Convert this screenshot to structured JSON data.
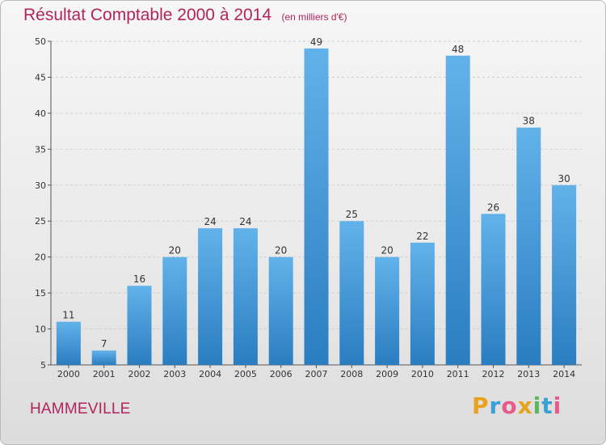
{
  "header": {
    "title": "Résultat Comptable 2000 à 2014",
    "unit": "(en milliers d'€)"
  },
  "footer": {
    "place": "HAMMEVILLE",
    "logo_text": "Proxiti",
    "logo_letters": [
      {
        "ch": "P",
        "color": "#e8a21d"
      },
      {
        "ch": "r",
        "color": "#3aa0d8"
      },
      {
        "ch": "o",
        "color": "#e85a8a"
      },
      {
        "ch": "x",
        "color": "#e8a21d"
      },
      {
        "ch": "i",
        "color": "#5cb85c"
      },
      {
        "ch": "t",
        "color": "#3aa0d8"
      },
      {
        "ch": "i",
        "color": "#e85a8a"
      }
    ]
  },
  "colors": {
    "title": "#b3245a",
    "bar_top": "#62b2ea",
    "bar_bottom": "#2a7dc0"
  },
  "chart_data": {
    "type": "bar",
    "title": "Résultat Comptable 2000 à 2014",
    "subtitle": "(en milliers d'€)",
    "xlabel": "",
    "ylabel": "",
    "categories": [
      "2000",
      "2001",
      "2002",
      "2003",
      "2004",
      "2005",
      "2006",
      "2007",
      "2008",
      "2009",
      "2010",
      "2011",
      "2012",
      "2013",
      "2014"
    ],
    "values": [
      11,
      7,
      16,
      20,
      24,
      24,
      20,
      49,
      25,
      20,
      22,
      48,
      26,
      38,
      30
    ],
    "ylim": [
      5,
      50
    ],
    "yticks": [
      5,
      10,
      15,
      20,
      25,
      30,
      35,
      40,
      45,
      50
    ],
    "grid": true,
    "legend": "none"
  }
}
